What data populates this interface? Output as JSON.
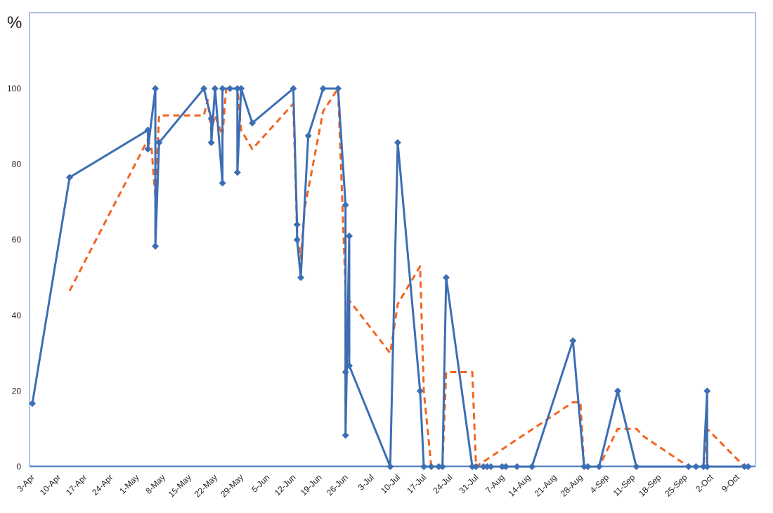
{
  "chart_data": {
    "type": "line",
    "title": "",
    "ylabel": "%",
    "xlabel": "",
    "ylim": [
      0,
      100
    ],
    "yticks": [
      0,
      20,
      40,
      60,
      80,
      100
    ],
    "xlim": [
      "2012-04-03",
      "2012-10-13"
    ],
    "xticks": [
      "3-Apr",
      "10-Apr",
      "17-Apr",
      "24-Apr",
      "1-May",
      "8-May",
      "15-May",
      "22-May",
      "29-May",
      "5-Jun",
      "12-Jun",
      "19-Jun",
      "26-Jun",
      "3-Jul",
      "10-Jul",
      "17-Jul",
      "24-Jul",
      "31-Jul",
      "7-Aug",
      "14-Aug",
      "21-Aug",
      "28-Aug",
      "4-Sep",
      "11-Sep",
      "18-Sep",
      "25-Sep",
      "2-Oct",
      "9-Oct"
    ],
    "grid": false,
    "colors": {
      "series": "#3C6EB4",
      "trend": "#F26522",
      "frame": "#5B86C5"
    },
    "series": [
      {
        "points": [
          [
            "2012-04-03",
            16.7
          ],
          [
            "2012-04-13",
            76.5
          ],
          [
            "2012-05-04",
            89
          ],
          [
            "2012-05-04",
            84
          ],
          [
            "2012-05-06",
            100
          ],
          [
            "2012-05-06",
            58.3
          ],
          [
            "2012-05-07",
            85.7
          ],
          [
            "2012-05-19",
            100
          ],
          [
            "2012-05-21",
            92
          ],
          [
            "2012-05-21",
            85.7
          ],
          [
            "2012-05-22",
            100
          ],
          [
            "2012-05-24",
            75
          ],
          [
            "2012-05-24",
            100
          ],
          [
            "2012-05-26",
            100
          ],
          [
            "2012-05-28",
            100
          ],
          [
            "2012-05-28",
            77.8
          ],
          [
            "2012-05-29",
            100
          ],
          [
            "2012-06-01",
            90.9
          ],
          [
            "2012-06-12",
            100
          ],
          [
            "2012-06-13",
            64
          ],
          [
            "2012-06-13",
            60
          ],
          [
            "2012-06-14",
            50
          ],
          [
            "2012-06-16",
            87.5
          ],
          [
            "2012-06-20",
            100
          ],
          [
            "2012-06-24",
            100
          ],
          [
            "2012-06-26",
            69.2
          ],
          [
            "2012-06-26",
            25
          ],
          [
            "2012-06-26",
            8.3
          ],
          [
            "2012-06-27",
            61
          ],
          [
            "2012-06-27",
            26.7
          ],
          [
            "2012-07-08",
            0
          ],
          [
            "2012-07-10",
            85.7
          ],
          [
            "2012-07-16",
            20
          ],
          [
            "2012-07-17",
            0
          ],
          [
            "2012-07-19",
            0
          ],
          [
            "2012-07-21",
            0
          ],
          [
            "2012-07-22",
            0
          ],
          [
            "2012-07-23",
            50
          ],
          [
            "2012-07-30",
            0
          ],
          [
            "2012-07-31",
            0
          ],
          [
            "2012-08-02",
            0
          ],
          [
            "2012-08-03",
            0
          ],
          [
            "2012-08-04",
            0
          ],
          [
            "2012-08-07",
            0
          ],
          [
            "2012-08-08",
            0
          ],
          [
            "2012-08-11",
            0
          ],
          [
            "2012-08-15",
            0
          ],
          [
            "2012-08-26",
            33.3
          ],
          [
            "2012-08-29",
            0
          ],
          [
            "2012-08-30",
            0
          ],
          [
            "2012-09-02",
            0
          ],
          [
            "2012-09-07",
            20
          ],
          [
            "2012-09-12",
            0
          ],
          [
            "2012-09-26",
            0
          ],
          [
            "2012-09-28",
            0
          ],
          [
            "2012-09-30",
            0
          ],
          [
            "2012-10-01",
            20
          ],
          [
            "2012-10-01",
            0
          ],
          [
            "2012-10-11",
            0
          ],
          [
            "2012-10-12",
            0
          ]
        ]
      },
      {
        "style": "dashed",
        "points": [
          [
            "2012-04-13",
            46.5
          ],
          [
            "2012-05-04",
            86.5
          ],
          [
            "2012-05-05",
            84
          ],
          [
            "2012-05-06",
            71
          ],
          [
            "2012-05-07",
            92.9
          ],
          [
            "2012-05-19",
            92.9
          ],
          [
            "2012-05-20",
            97
          ],
          [
            "2012-05-21",
            88.8
          ],
          [
            "2012-05-22",
            92.9
          ],
          [
            "2012-05-24",
            87.5
          ],
          [
            "2012-05-25",
            100
          ],
          [
            "2012-05-28",
            100
          ],
          [
            "2012-05-29",
            89
          ],
          [
            "2012-06-01",
            84
          ],
          [
            "2012-06-12",
            96
          ],
          [
            "2012-06-13",
            62
          ],
          [
            "2012-06-14",
            55
          ],
          [
            "2012-06-15",
            68
          ],
          [
            "2012-06-20",
            94
          ],
          [
            "2012-06-24",
            100
          ],
          [
            "2012-06-26",
            47
          ],
          [
            "2012-06-26",
            17
          ],
          [
            "2012-06-27",
            44
          ],
          [
            "2012-07-08",
            30
          ],
          [
            "2012-07-10",
            43
          ],
          [
            "2012-07-16",
            53
          ],
          [
            "2012-07-17",
            20
          ],
          [
            "2012-07-19",
            0
          ],
          [
            "2012-07-22",
            0
          ],
          [
            "2012-07-23",
            25
          ],
          [
            "2012-07-30",
            25
          ],
          [
            "2012-07-31",
            0
          ],
          [
            "2012-08-26",
            17
          ],
          [
            "2012-08-28",
            17
          ],
          [
            "2012-08-29",
            0
          ],
          [
            "2012-09-02",
            0
          ],
          [
            "2012-09-07",
            10
          ],
          [
            "2012-09-12",
            10
          ],
          [
            "2012-09-14",
            8
          ],
          [
            "2012-09-26",
            0
          ],
          [
            "2012-09-30",
            0
          ],
          [
            "2012-10-01",
            10
          ],
          [
            "2012-10-11",
            0
          ]
        ]
      }
    ]
  }
}
